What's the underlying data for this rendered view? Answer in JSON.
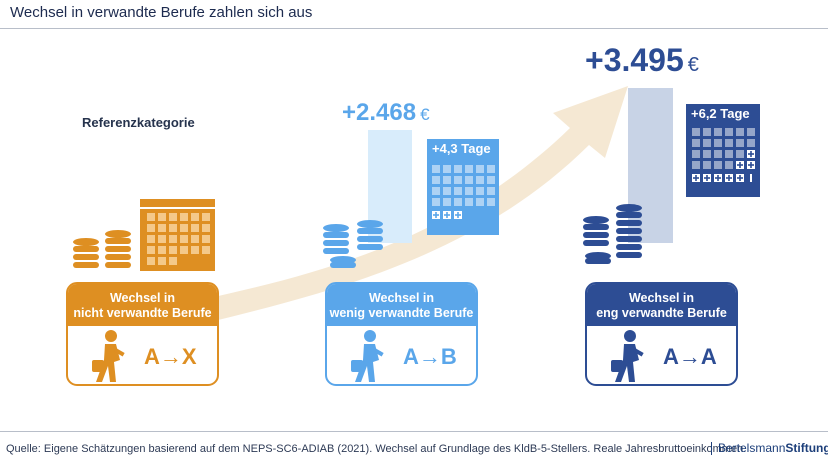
{
  "title": "Wechsel in verwandte Berufe zahlen sich aus",
  "reference_label": "Referenzkategorie",
  "colors": {
    "orange": "#de8f22",
    "light_blue": "#5aa6ea",
    "dark_blue": "#2d4d94",
    "arrow": "#f5e8d3"
  },
  "groups": [
    {
      "card_line1": "Wechsel in",
      "card_line2": "nicht verwandte Berufe",
      "formula": "A→X",
      "icons": [
        "coin-stack-icon",
        "calendar-icon",
        "walking-person-icon"
      ]
    },
    {
      "amount": "+2.468",
      "currency": "€",
      "days": "+4,3 Tage",
      "card_line1": "Wechsel in",
      "card_line2": "wenig verwandte Berufe",
      "formula": "A→B",
      "icons": [
        "coin-stack-icon",
        "calendar-icon",
        "walking-person-icon"
      ]
    },
    {
      "amount": "+3.495",
      "currency": "€",
      "days": "+6,2 Tage",
      "card_line1": "Wechsel in",
      "card_line2": "eng verwandte Berufe",
      "formula": "A→A",
      "icons": [
        "coin-stack-icon",
        "calendar-icon",
        "walking-person-icon"
      ]
    }
  ],
  "source": "Quelle: Eigene Schätzungen basierend auf dem NEPS-SC6-ADIAB (2021). Wechsel auf Grundlage des KldB-5-Stellers. Reale Jahresbruttoeinkommen.",
  "brand_part1": "Bertelsmann",
  "brand_part2": "Stiftung"
}
